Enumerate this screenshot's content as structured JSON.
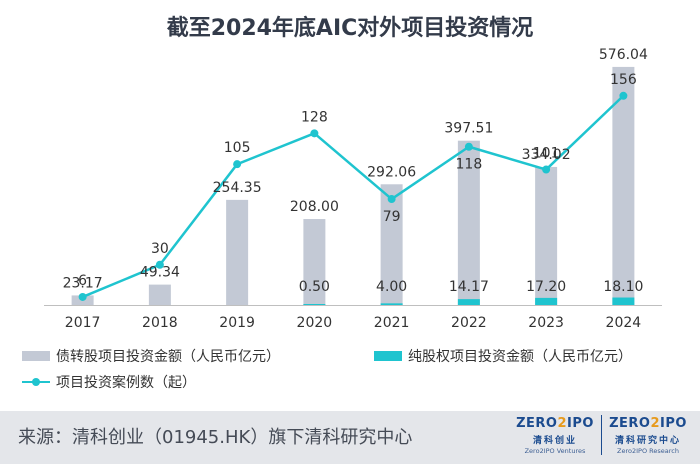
{
  "chart_data": {
    "type": "bar+line",
    "title": "截至2024年底AIC对外项目投资情况",
    "categories": [
      "2017",
      "2018",
      "2019",
      "2020",
      "2021",
      "2022",
      "2023",
      "2024"
    ],
    "series": [
      {
        "name": "债转股项目投资金额（人民币亿元）",
        "kind": "bar",
        "color": "#c3c9d5",
        "values": [
          23.17,
          49.34,
          254.35,
          208.0,
          292.06,
          397.51,
          334.02,
          576.04
        ],
        "labels": [
          "23.17",
          "49.34",
          "254.35",
          "208.00",
          "292.06",
          "397.51",
          "334.02",
          "576.04"
        ]
      },
      {
        "name": "纯股权项目投资金额（人民币亿元）",
        "kind": "bar",
        "color": "#1fc4cf",
        "values": [
          0,
          0,
          0,
          0.5,
          4.0,
          14.17,
          17.2,
          18.1
        ],
        "labels": [
          "",
          "",
          "",
          "0.50",
          "4.00",
          "14.17",
          "17.20",
          "18.10"
        ]
      },
      {
        "name": "项目投资案例数（起）",
        "kind": "line",
        "color": "#1fc4cf",
        "values": [
          6,
          30,
          105,
          128,
          79,
          118,
          101,
          156
        ],
        "labels": [
          "6",
          "30",
          "105",
          "128",
          "79",
          "118",
          "101",
          "156"
        ]
      }
    ],
    "bar_axis": {
      "min": 0,
      "max": 600
    },
    "line_axis": {
      "min": 0,
      "max": 170
    }
  },
  "legend": {
    "item1": "债转股项目投资金额（人民币亿元）",
    "item2": "纯股权项目投资金额（人民币亿元）",
    "item3": "项目投资案例数（起）"
  },
  "footer": {
    "source": "来源：清科创业（01945.HK）旗下清科研究中心",
    "logo1": {
      "mark_a": "ZERO",
      "mark_b": "2",
      "mark_c": "IPO",
      "cn": "清科创业",
      "en": "Zero2IPO Ventures"
    },
    "logo2": {
      "mark_a": "ZERO",
      "mark_b": "2",
      "mark_c": "IPO",
      "cn": "清科研究中心",
      "en": "Zero2IPO Research"
    }
  }
}
